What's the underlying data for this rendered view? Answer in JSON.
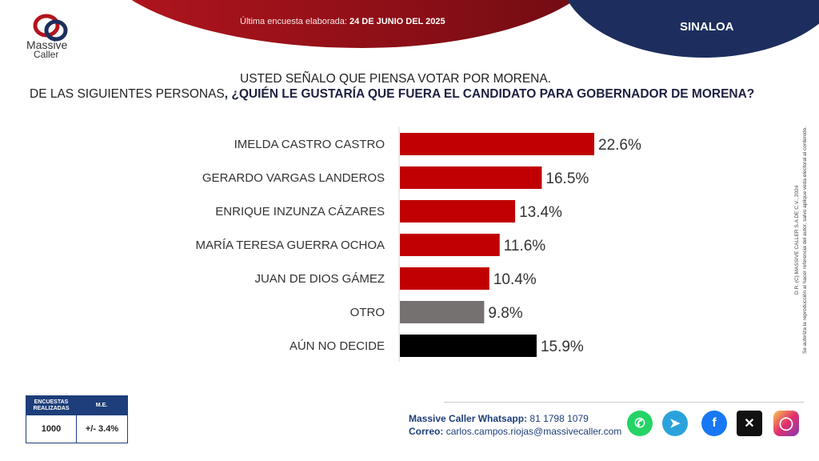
{
  "header": {
    "survey_label": "Última encuesta elaborada:",
    "survey_date": "24 DE JUNIO DEL 2025",
    "region": "SINALOA",
    "logo_word1": "Massive",
    "logo_word2": "Caller"
  },
  "question": {
    "line1": "USTED SEÑALO QUE PIENSA VOTAR POR MORENA.",
    "line2_prefix": "DE LAS SIGUIENTES PERSONAS",
    "line2_bold": ", ¿QUIÉN LE GUSTARÍA QUE FUERA EL CANDIDATO PARA GOBERNADOR DE MORENA?"
  },
  "chart_data": {
    "type": "bar",
    "orientation": "horizontal",
    "categories": [
      "IMELDA CASTRO CASTRO",
      "GERARDO VARGAS LANDEROS",
      "ENRIQUE INZUNZA CÁZARES",
      "MARÍA TERESA GUERRA OCHOA",
      "JUAN DE DIOS GÁMEZ",
      "OTRO",
      "AÚN NO DECIDE"
    ],
    "values": [
      22.6,
      16.5,
      13.4,
      11.6,
      10.4,
      9.8,
      15.9
    ],
    "value_labels": [
      "22.6%",
      "16.5%",
      "13.4%",
      "11.6%",
      "10.4%",
      "9.8%",
      "15.9%"
    ],
    "colors": [
      "#c00000",
      "#c00000",
      "#c00000",
      "#c00000",
      "#c00000",
      "#767171",
      "#000000"
    ],
    "xlim": [
      0,
      22.6
    ],
    "grid": false,
    "legend": "none"
  },
  "legal": {
    "line1": "D.R. (C) MASSIVE CALLER S.A DE C.V., 2024",
    "line2": "Se autoriza la reproducción al hacer referencia del autor, salvo aplique veda electoral al contenido."
  },
  "stats": {
    "surveys_header": "ENCUESTAS REALIZADAS",
    "surveys_value": "1000",
    "me_header": "M.E.",
    "me_value": "+/- 3.4%"
  },
  "contact": {
    "whatsapp_label": "Massive Caller Whatsapp:",
    "whatsapp_value": "81 1798 1079",
    "email_label": "Correo:",
    "email_value": "carlos.campos.riojas@massivecaller.com"
  },
  "social_icons": [
    "whatsapp-icon",
    "telegram-icon",
    "facebook-icon",
    "x-icon",
    "instagram-icon"
  ],
  "colors": {
    "accent_red": "#c00000",
    "brand_blue": "#1d2e5e"
  }
}
